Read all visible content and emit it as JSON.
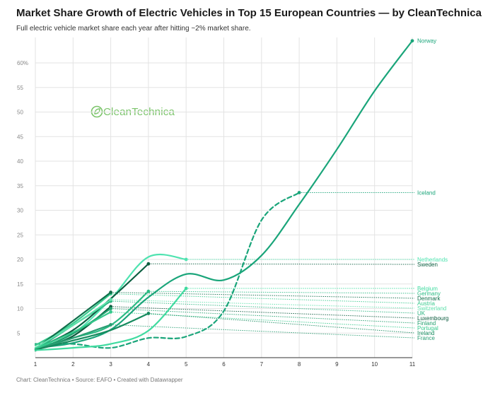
{
  "title": "Market Share Growth of Electric Vehicles in Top 15 European Countries — by CleanTechnica",
  "subtitle": "Full electric vehicle market share each year after hitting ~2% market share.",
  "footer": "Chart: CleanTechnica • Source: EAFO • Created with Datawrapper",
  "logo_text": "CleanTechnica",
  "colors": {
    "grid": "#e3e3e3",
    "ref": "#9a9a9a"
  },
  "chart_data": {
    "type": "line",
    "title": "Market Share Growth of Electric Vehicles in Top 15 European Countries — by CleanTechnica",
    "xlabel": "",
    "ylabel": "",
    "x_ticks": [
      1,
      2,
      3,
      4,
      5,
      6,
      7,
      8,
      9,
      10,
      11
    ],
    "y_ticks": [
      {
        "value": 5,
        "label": "5"
      },
      {
        "value": 10,
        "label": "10"
      },
      {
        "value": 15,
        "label": "15"
      },
      {
        "value": 20,
        "label": "20"
      },
      {
        "value": 25,
        "label": "25"
      },
      {
        "value": 30,
        "label": "30"
      },
      {
        "value": 35,
        "label": "35"
      },
      {
        "value": 40,
        "label": "40"
      },
      {
        "value": 45,
        "label": "45"
      },
      {
        "value": 50,
        "label": "50"
      },
      {
        "value": 55,
        "label": "55"
      },
      {
        "value": 60,
        "label": "60%"
      }
    ],
    "xlim": [
      1,
      11
    ],
    "ylim": [
      0,
      65
    ],
    "grid": true,
    "series": [
      {
        "name": "Norway",
        "color": "#1aa57a",
        "dashed": false,
        "x": [
          1,
          2,
          3,
          4,
          5,
          6,
          7,
          8,
          9,
          10,
          11
        ],
        "y": [
          2.0,
          3.0,
          5.7,
          12.3,
          17.0,
          15.8,
          20.8,
          31.2,
          42.4,
          54.3,
          64.5
        ]
      },
      {
        "name": "Iceland",
        "color": "#1aa57a",
        "dashed": true,
        "x": [
          1,
          2,
          3,
          4,
          5,
          6,
          7,
          8
        ],
        "y": [
          2.8,
          2.8,
          2.0,
          4.0,
          4.3,
          9.5,
          28.0,
          33.6
        ]
      },
      {
        "name": "Netherlands",
        "color": "#4fe3b0",
        "dashed": false,
        "x": [
          1,
          2,
          3,
          4,
          5
        ],
        "y": [
          1.7,
          4.9,
          11.9,
          20.5,
          20.0
        ]
      },
      {
        "name": "Sweden",
        "color": "#0b5e40",
        "dashed": false,
        "x": [
          1,
          2,
          3,
          4
        ],
        "y": [
          1.8,
          5.6,
          12.0,
          19.1
        ]
      },
      {
        "name": "Austria",
        "color": "#3acb8f",
        "dashed": false,
        "x": [
          1,
          2,
          3
        ],
        "y": [
          2.5,
          7.0,
          13.0
        ]
      },
      {
        "name": "Denmark",
        "color": "#0f6e4a",
        "dashed": false,
        "x": [
          1,
          2,
          3
        ],
        "y": [
          1.8,
          7.5,
          13.3
        ]
      },
      {
        "name": "Germany",
        "color": "#2bbb84",
        "dashed": false,
        "x": [
          1,
          2,
          3,
          4
        ],
        "y": [
          1.8,
          4.0,
          6.6,
          13.5
        ]
      },
      {
        "name": "UK",
        "color": "#27b27e",
        "dashed": false,
        "x": [
          1,
          2,
          3
        ],
        "y": [
          1.6,
          6.6,
          11.5
        ]
      },
      {
        "name": "Switzerland",
        "color": "#5fe0ab",
        "dashed": false,
        "x": [
          1,
          2,
          3
        ],
        "y": [
          2.0,
          6.6,
          11.8
        ]
      },
      {
        "name": "Luxembourg",
        "color": "#0a5a3d",
        "dashed": false,
        "x": [
          1,
          2,
          3
        ],
        "y": [
          1.6,
          4.4,
          10.4
        ]
      },
      {
        "name": "Finland",
        "color": "#1f9e6c",
        "dashed": false,
        "x": [
          1,
          2,
          3
        ],
        "y": [
          1.4,
          4.9,
          10.0
        ]
      },
      {
        "name": "France",
        "color": "#2a9e73",
        "dashed": false,
        "x": [
          1,
          2,
          3
        ],
        "y": [
          1.6,
          4.0,
          6.7
        ]
      },
      {
        "name": "Portugal",
        "color": "#35c98c",
        "dashed": false,
        "x": [
          1,
          2,
          3
        ],
        "y": [
          1.8,
          5.2,
          9.3
        ]
      },
      {
        "name": "Ireland",
        "color": "#168a5e",
        "dashed": false,
        "x": [
          1,
          2,
          3,
          4
        ],
        "y": [
          1.6,
          3.5,
          5.6,
          9.0
        ]
      },
      {
        "name": "Belgium",
        "color": "#40dba0",
        "dashed": false,
        "x": [
          1,
          2,
          3,
          4,
          5
        ],
        "y": [
          1.5,
          2.0,
          2.8,
          5.5,
          14.1
        ]
      }
    ]
  }
}
